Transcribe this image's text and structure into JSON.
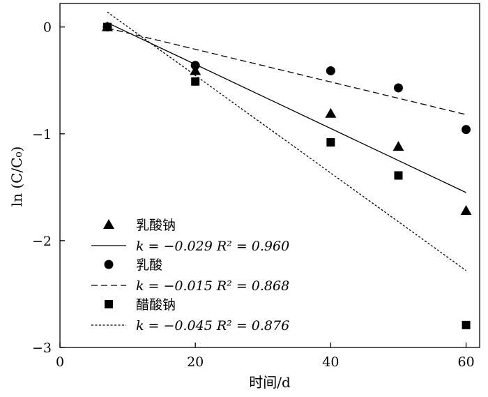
{
  "chart_data": {
    "type": "scatter",
    "xlabel": "时间/d",
    "ylabel": "ln (C/C₀)",
    "xlim": [
      0,
      62
    ],
    "ylim": [
      -3,
      0.22
    ],
    "xticks": [
      "0",
      "20",
      "40",
      "60"
    ],
    "yticks": [
      "0",
      "−1",
      "−2",
      "−3"
    ],
    "legend_position": "bottom-left",
    "series": [
      {
        "name": "乳酸钠",
        "marker": "triangle",
        "points": [
          [
            7,
            0.0
          ],
          [
            20,
            -0.41
          ],
          [
            40,
            -0.81
          ],
          [
            50,
            -1.12
          ],
          [
            60,
            -1.72
          ]
        ],
        "fit": {
          "line_style": "solid",
          "label": "k = −0.029   R² = 0.960",
          "start": [
            7,
            0.04
          ],
          "end": [
            60,
            -1.55
          ]
        }
      },
      {
        "name": "乳酸",
        "marker": "circle",
        "points": [
          [
            7,
            0.0
          ],
          [
            20,
            -0.36
          ],
          [
            40,
            -0.41
          ],
          [
            50,
            -0.57
          ],
          [
            60,
            -0.96
          ]
        ],
        "fit": {
          "line_style": "dashed",
          "label": "k = −0.015   R² = 0.868",
          "start": [
            7,
            -0.01
          ],
          "end": [
            60,
            -0.82
          ]
        }
      },
      {
        "name": "醋酸钠",
        "marker": "square",
        "points": [
          [
            7,
            0.0
          ],
          [
            20,
            -0.51
          ],
          [
            40,
            -1.08
          ],
          [
            50,
            -1.39
          ],
          [
            60,
            -2.79
          ]
        ],
        "fit": {
          "line_style": "dotted",
          "label": "k = −0.045   R² = 0.876",
          "start": [
            7,
            0.14
          ],
          "end": [
            60,
            -2.28
          ]
        }
      }
    ]
  }
}
